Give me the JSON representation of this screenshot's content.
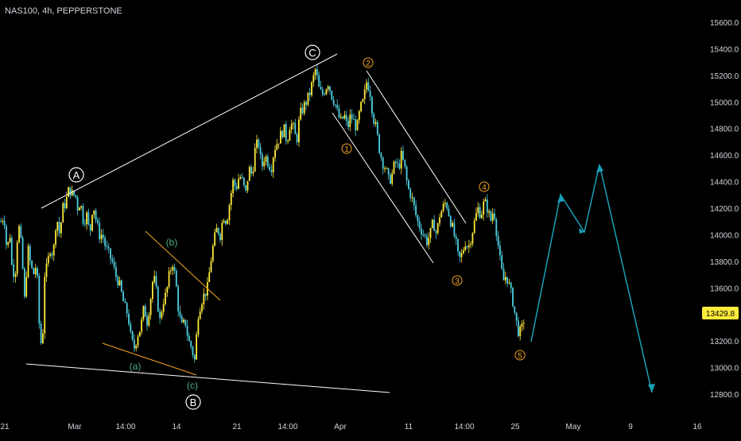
{
  "header": {
    "symbol_title": "NAS100, 4h, PEPPERSTONE"
  },
  "price_scale": {
    "ticks": [
      "15600.0",
      "15400.0",
      "15200.0",
      "15000.0",
      "14800.0",
      "14600.0",
      "14400.0",
      "14200.0",
      "14000.0",
      "13800.0",
      "13600.0",
      "13400.0",
      "13200.0",
      "13000.0",
      "12800.0"
    ],
    "last_price_label": "13429.8",
    "last_price_color": "#ffeb3b"
  },
  "time_scale": {
    "ticks": [
      "21",
      "Mar",
      "14:00",
      "14",
      "21",
      "14:00",
      "Apr",
      "11",
      "14:00",
      "25",
      "May",
      "9",
      "16"
    ]
  },
  "colors": {
    "background": "#000000",
    "up": "#ffeb3b",
    "down": "#4dd0e1",
    "trendline": "#ffffff",
    "orange": "#f5a623",
    "projection": "#1aa0b8",
    "wave_label_green": "#4caf80"
  },
  "wave_labels": {
    "A": "A",
    "B": "B",
    "C": "C",
    "a": "(a)",
    "b": "(b)",
    "c": "(c)",
    "w1": "1",
    "w2": "2",
    "w3": "3",
    "w4": "4",
    "w5": "5"
  },
  "chart_data": {
    "type": "candlestick",
    "title": "NAS100, 4h, PEPPERSTONE",
    "ylim": [
      12700,
      15700
    ],
    "y_ticks": [
      15600,
      15400,
      15200,
      15000,
      14800,
      14600,
      14400,
      14200,
      14000,
      13800,
      13600,
      13400,
      13200,
      13000,
      12800
    ],
    "x_ticks": [
      "21",
      "Mar",
      "14:00",
      "14",
      "21",
      "14:00",
      "Apr",
      "11",
      "14:00",
      "25",
      "May",
      "9",
      "16"
    ],
    "last_price": 13429.8,
    "price_path": [
      [
        0,
        14100
      ],
      [
        4,
        14150
      ],
      [
        8,
        13850
      ],
      [
        11,
        14050
      ],
      [
        14,
        13750
      ],
      [
        18,
        13700
      ],
      [
        22,
        14100
      ],
      [
        26,
        13900
      ],
      [
        30,
        13500
      ],
      [
        34,
        13900
      ],
      [
        38,
        13750
      ],
      [
        42,
        13700
      ],
      [
        45,
        13800
      ],
      [
        48,
        13350
      ],
      [
        52,
        13100
      ],
      [
        55,
        13700
      ],
      [
        58,
        13750
      ],
      [
        62,
        13900
      ],
      [
        66,
        13850
      ],
      [
        70,
        14150
      ],
      [
        74,
        14000
      ],
      [
        78,
        14200
      ],
      [
        82,
        14250
      ],
      [
        86,
        14350
      ],
      [
        90,
        14300
      ],
      [
        94,
        14300
      ],
      [
        96,
        14200
      ],
      [
        100,
        14250
      ],
      [
        104,
        14100
      ],
      [
        108,
        14150
      ],
      [
        112,
        14000
      ],
      [
        116,
        14250
      ],
      [
        120,
        14100
      ],
      [
        124,
        14000
      ],
      [
        128,
        14000
      ],
      [
        132,
        13900
      ],
      [
        136,
        13850
      ],
      [
        140,
        13800
      ],
      [
        144,
        13700
      ],
      [
        148,
        13650
      ],
      [
        152,
        13550
      ],
      [
        156,
        13450
      ],
      [
        160,
        13400
      ],
      [
        164,
        13200
      ],
      [
        168,
        13150
      ],
      [
        172,
        13250
      ],
      [
        176,
        13300
      ],
      [
        180,
        13450
      ],
      [
        184,
        13350
      ],
      [
        188,
        13500
      ],
      [
        192,
        13700
      ],
      [
        196,
        13550
      ],
      [
        200,
        13350
      ],
      [
        204,
        13500
      ],
      [
        208,
        13550
      ],
      [
        212,
        13700
      ],
      [
        216,
        13800
      ],
      [
        220,
        13650
      ],
      [
        224,
        13400
      ],
      [
        228,
        13300
      ],
      [
        232,
        13350
      ],
      [
        236,
        13200
      ],
      [
        240,
        13150
      ],
      [
        244,
        13050
      ],
      [
        248,
        13400
      ],
      [
        252,
        13500
      ],
      [
        256,
        13550
      ],
      [
        260,
        13600
      ],
      [
        264,
        13800
      ],
      [
        268,
        13950
      ],
      [
        272,
        14050
      ],
      [
        276,
        14000
      ],
      [
        280,
        14150
      ],
      [
        284,
        14100
      ],
      [
        288,
        14250
      ],
      [
        292,
        14400
      ],
      [
        296,
        14350
      ],
      [
        300,
        14450
      ],
      [
        304,
        14400
      ],
      [
        308,
        14300
      ],
      [
        312,
        14500
      ],
      [
        316,
        14450
      ],
      [
        320,
        14650
      ],
      [
        324,
        14700
      ],
      [
        328,
        14500
      ],
      [
        332,
        14600
      ],
      [
        336,
        14550
      ],
      [
        340,
        14500
      ],
      [
        344,
        14650
      ],
      [
        348,
        14700
      ],
      [
        352,
        14750
      ],
      [
        356,
        14800
      ],
      [
        360,
        14700
      ],
      [
        364,
        14850
      ],
      [
        368,
        14800
      ],
      [
        372,
        14700
      ],
      [
        376,
        14900
      ],
      [
        380,
        14950
      ],
      [
        384,
        15000
      ],
      [
        388,
        15050
      ],
      [
        392,
        15150
      ],
      [
        396,
        15250
      ],
      [
        400,
        15100
      ],
      [
        404,
        15050
      ],
      [
        408,
        15100
      ],
      [
        412,
        15150
      ],
      [
        416,
        15050
      ],
      [
        420,
        15000
      ],
      [
        424,
        14900
      ],
      [
        428,
        14850
      ],
      [
        432,
        14900
      ],
      [
        436,
        14800
      ],
      [
        440,
        14900
      ],
      [
        444,
        14850
      ],
      [
        448,
        14800
      ],
      [
        452,
        14950
      ],
      [
        456,
        15000
      ],
      [
        460,
        15150
      ],
      [
        464,
        15100
      ],
      [
        468,
        14900
      ],
      [
        472,
        14800
      ],
      [
        476,
        14650
      ],
      [
        480,
        14550
      ],
      [
        484,
        14500
      ],
      [
        488,
        14400
      ],
      [
        492,
        14450
      ],
      [
        496,
        14550
      ],
      [
        500,
        14500
      ],
      [
        504,
        14600
      ],
      [
        508,
        14500
      ],
      [
        512,
        14350
      ],
      [
        516,
        14300
      ],
      [
        520,
        14200
      ],
      [
        524,
        14100
      ],
      [
        528,
        14050
      ],
      [
        532,
        14000
      ],
      [
        536,
        13950
      ],
      [
        540,
        14000
      ],
      [
        544,
        14100
      ],
      [
        548,
        14000
      ],
      [
        552,
        14150
      ],
      [
        556,
        14200
      ],
      [
        560,
        14250
      ],
      [
        564,
        14150
      ],
      [
        568,
        14050
      ],
      [
        572,
        13950
      ],
      [
        576,
        13800
      ],
      [
        580,
        13850
      ],
      [
        584,
        13950
      ],
      [
        588,
        13900
      ],
      [
        592,
        14000
      ],
      [
        596,
        14100
      ],
      [
        600,
        14200
      ],
      [
        604,
        14150
      ],
      [
        608,
        14250
      ],
      [
        612,
        14200
      ],
      [
        616,
        14100
      ],
      [
        620,
        14200
      ],
      [
        624,
        14000
      ],
      [
        628,
        13800
      ],
      [
        632,
        13650
      ],
      [
        636,
        13700
      ],
      [
        640,
        13600
      ],
      [
        644,
        13500
      ],
      [
        648,
        13350
      ],
      [
        652,
        13250
      ],
      [
        656,
        13300
      ],
      [
        660,
        13430
      ]
    ],
    "annotations": {
      "wave_A_price": 14350,
      "wave_B_price": 12950,
      "wave_C_price": 15300,
      "impulse_wave_prices": {
        "1": 14750,
        "2": 15150,
        "3": 13750,
        "4": 14300,
        "5": 13200
      }
    },
    "projection_prices": [
      13200,
      14300,
      14000,
      14550,
      12780
    ]
  }
}
